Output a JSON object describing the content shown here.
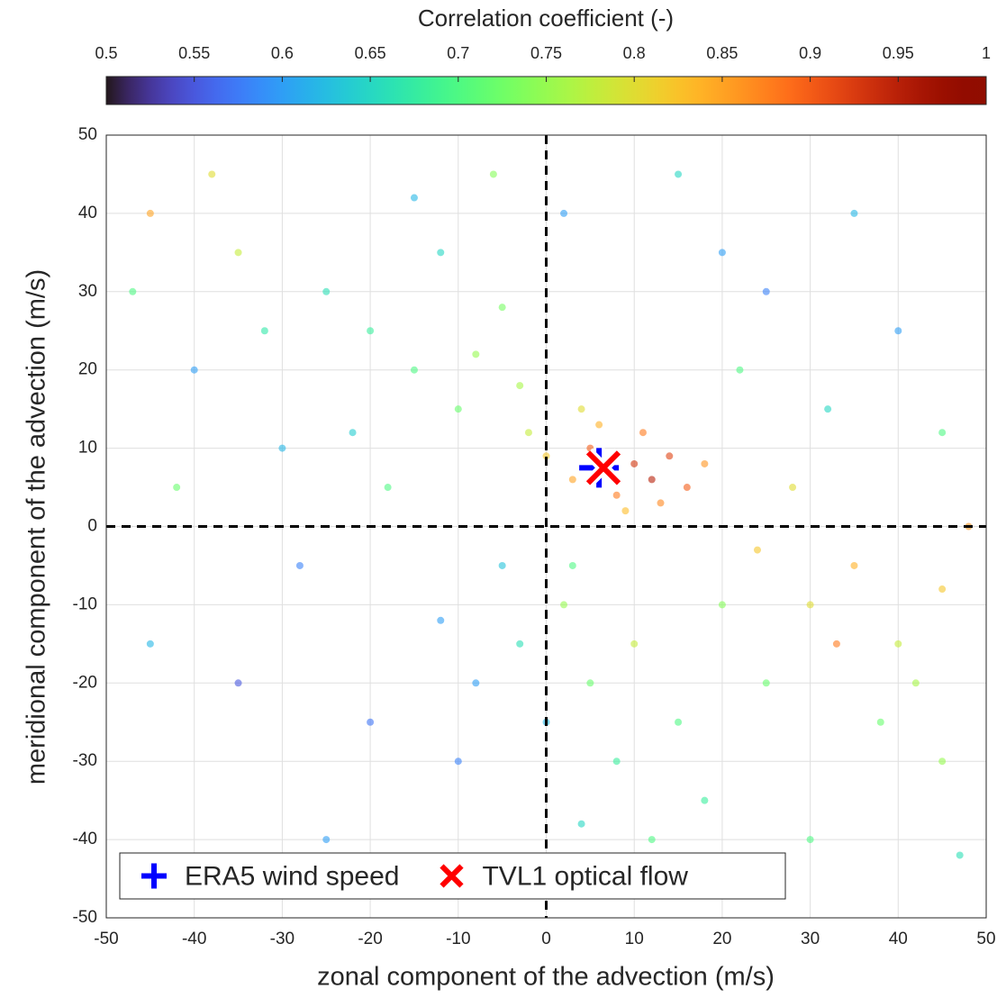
{
  "chart_data": {
    "type": "scatter",
    "xlabel": "zonal component of the advection (m/s)",
    "ylabel": "meridional component of the advection (m/s)",
    "xlim": [
      -50,
      50
    ],
    "ylim": [
      -50,
      50
    ],
    "xticks": [
      -50,
      -40,
      -30,
      -20,
      -10,
      0,
      10,
      20,
      30,
      40,
      50
    ],
    "yticks": [
      -50,
      -40,
      -30,
      -20,
      -10,
      0,
      10,
      20,
      30,
      40,
      50
    ],
    "grid": true,
    "hlines": [
      0
    ],
    "vlines": [
      0
    ],
    "legend": "lower left",
    "colorbar": {
      "label": "Correlation coefficient (-)",
      "lim": [
        0.5,
        1
      ],
      "colormap": "turbo",
      "ticks": [
        0.5,
        0.55,
        0.6,
        0.65,
        0.7,
        0.75,
        0.8,
        0.85,
        0.9,
        0.95,
        1
      ]
    },
    "x": [
      10,
      12,
      5,
      14,
      8,
      3,
      16,
      11,
      6,
      18,
      0,
      9,
      13,
      -2,
      4,
      -10,
      -15,
      -20,
      -8,
      -25,
      -5,
      -30,
      -35,
      -40,
      -45,
      -12,
      -18,
      -3,
      -22,
      -28,
      -38,
      -47,
      -15,
      2,
      -6,
      -32,
      -42,
      2,
      5,
      -3,
      8,
      0,
      -5,
      10,
      15,
      -8,
      4,
      12,
      -10,
      20,
      25,
      3,
      -12,
      7,
      18,
      -20,
      -25,
      -35,
      -45,
      30,
      35,
      40,
      45,
      48,
      28,
      38,
      45,
      32,
      40,
      25,
      45,
      35,
      20,
      15,
      30,
      47,
      42,
      22,
      24,
      33
    ],
    "y": [
      8,
      6,
      10,
      9,
      4,
      6,
      5,
      12,
      13,
      8,
      9,
      2,
      3,
      12,
      15,
      15,
      20,
      25,
      22,
      30,
      28,
      10,
      35,
      20,
      40,
      35,
      5,
      18,
      12,
      -5,
      45,
      30,
      42,
      40,
      45,
      25,
      5,
      -10,
      -20,
      -15,
      -30,
      -25,
      -5,
      -15,
      -25,
      -20,
      -38,
      -40,
      -30,
      -10,
      -20,
      -5,
      -12,
      -45,
      -35,
      -25,
      -40,
      -20,
      -15,
      -10,
      -5,
      -15,
      -8,
      0,
      5,
      -25,
      -30,
      15,
      25,
      30,
      12,
      40,
      35,
      45,
      -40,
      -42,
      -20,
      20,
      -3,
      -15
    ],
    "c": [
      0.93,
      0.95,
      0.9,
      0.92,
      0.88,
      0.85,
      0.9,
      0.88,
      0.84,
      0.86,
      0.82,
      0.83,
      0.87,
      0.78,
      0.8,
      0.72,
      0.7,
      0.68,
      0.75,
      0.66,
      0.73,
      0.62,
      0.78,
      0.6,
      0.85,
      0.65,
      0.7,
      0.76,
      0.64,
      0.58,
      0.8,
      0.7,
      0.62,
      0.6,
      0.74,
      0.67,
      0.72,
      0.75,
      0.72,
      0.66,
      0.68,
      0.62,
      0.63,
      0.78,
      0.7,
      0.6,
      0.65,
      0.7,
      0.58,
      0.74,
      0.72,
      0.7,
      0.6,
      0.63,
      0.68,
      0.57,
      0.6,
      0.55,
      0.62,
      0.8,
      0.84,
      0.78,
      0.82,
      0.86,
      0.8,
      0.72,
      0.75,
      0.65,
      0.6,
      0.58,
      0.7,
      0.62,
      0.6,
      0.65,
      0.7,
      0.66,
      0.76,
      0.7,
      0.82,
      0.88
    ],
    "markers": [
      {
        "name": "ERA5 wind speed",
        "x": 6,
        "y": 7.5,
        "color": "#0000ff",
        "symbol": "+"
      },
      {
        "name": "TVL1 optical flow",
        "x": 6.5,
        "y": 7.5,
        "color": "#ff0000",
        "symbol": "x"
      }
    ]
  }
}
